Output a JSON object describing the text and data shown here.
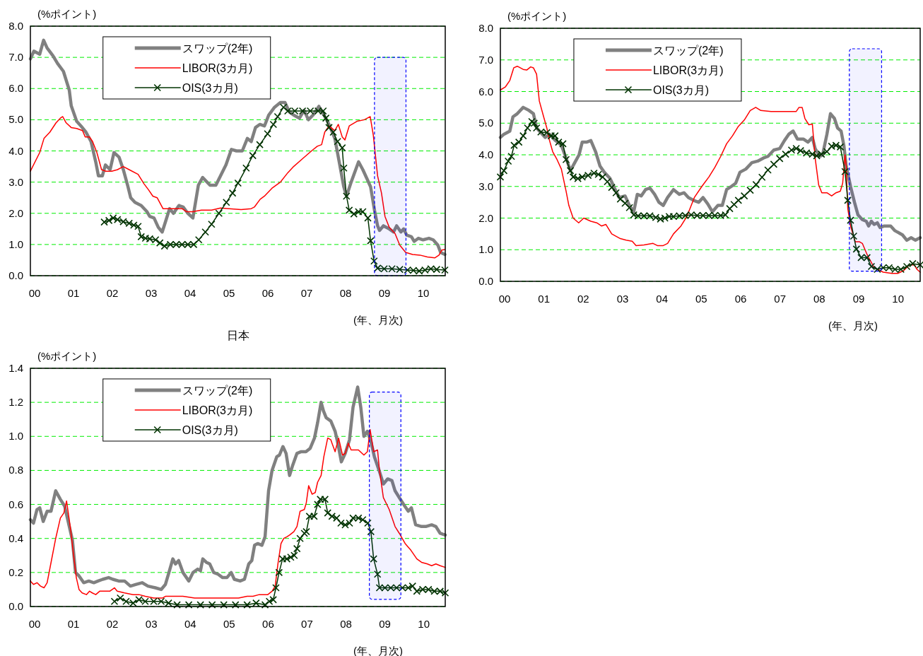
{
  "chart_data": [
    {
      "type": "line",
      "title": "日本",
      "ylabel": "(%ポイント)",
      "xlabel": "(年、月次)",
      "xlim": [
        2000,
        2010.67
      ],
      "ylim": [
        0,
        8
      ],
      "xticks": [
        {
          "value": 2000,
          "label": "00"
        },
        {
          "value": 2001,
          "label": "01"
        },
        {
          "value": 2002,
          "label": "02"
        },
        {
          "value": 2003,
          "label": "03"
        },
        {
          "value": 2004,
          "label": "04"
        },
        {
          "value": 2005,
          "label": "05"
        },
        {
          "value": 2006,
          "label": "06"
        },
        {
          "value": 2007,
          "label": "07"
        },
        {
          "value": 2008,
          "label": "08"
        },
        {
          "value": 2009,
          "label": "09"
        },
        {
          "value": 2010,
          "label": "10"
        }
      ],
      "yticks": [
        {
          "value": 0,
          "label": "0.0"
        },
        {
          "value": 1,
          "label": "1.0"
        },
        {
          "value": 2,
          "label": "2.0"
        },
        {
          "value": 3,
          "label": "3.0"
        },
        {
          "value": 4,
          "label": "4.0"
        },
        {
          "value": 5,
          "label": "5.0"
        },
        {
          "value": 6,
          "label": "6.0"
        },
        {
          "value": 7,
          "label": "7.0"
        },
        {
          "value": 8,
          "label": "8.0"
        }
      ],
      "grid": "y",
      "legend": "top left",
      "line_style": "solid",
      "bands": [
        {
          "axis": "x",
          "from": 2008.85,
          "to": 2009.66,
          "color": "#0000ff"
        }
      ],
      "series": [
        {
          "name": "スワップ(2年)",
          "color": "#808080",
          "marker": "none",
          "x": [
            2000.0,
            2000.09,
            2000.24,
            2000.34,
            2000.43,
            2000.58,
            2000.7,
            2000.85,
            2001.0,
            2001.05,
            2001.19,
            2001.3,
            2001.43,
            2001.56,
            2001.68,
            2001.75,
            2001.85,
            2001.93,
            2002.05,
            2002.15,
            2002.28,
            2002.39,
            2002.5,
            2002.58,
            2002.69,
            2002.85,
            2003.0,
            2003.07,
            2003.18,
            2003.29,
            2003.39,
            2003.48,
            2003.58,
            2003.68,
            2003.82,
            2003.93,
            2004.05,
            2004.18,
            2004.32,
            2004.43,
            2004.62,
            2004.77,
            2004.89,
            2005.03,
            2005.17,
            2005.3,
            2005.45,
            2005.58,
            2005.68,
            2005.79,
            2005.9,
            2006.02,
            2006.13,
            2006.28,
            2006.43,
            2006.55,
            2006.66,
            2006.77,
            2006.92,
            2007.04,
            2007.15,
            2007.27,
            2007.42,
            2007.53,
            2007.68,
            2007.83,
            2007.95,
            2008.06,
            2008.13,
            2008.25,
            2008.44,
            2008.55,
            2008.66,
            2008.75,
            2008.85,
            2008.93,
            2008.98,
            2009.08,
            2009.23,
            2009.34,
            2009.42,
            2009.53,
            2009.6,
            2009.68,
            2009.8,
            2009.87,
            2009.98,
            2010.1,
            2010.25,
            2010.36,
            2010.48,
            2010.55,
            2010.66
          ],
          "values": [
            6.95,
            7.2,
            7.1,
            7.55,
            7.3,
            7.05,
            6.8,
            6.55,
            5.95,
            5.45,
            4.95,
            4.8,
            4.6,
            4.3,
            3.65,
            3.2,
            3.2,
            3.55,
            3.4,
            3.95,
            3.8,
            3.4,
            2.9,
            2.5,
            2.35,
            2.25,
            2.05,
            1.9,
            1.85,
            1.55,
            1.4,
            1.75,
            2.15,
            2.0,
            2.25,
            2.2,
            2.0,
            1.85,
            2.9,
            3.15,
            2.9,
            2.9,
            3.2,
            3.55,
            4.05,
            4.0,
            4.0,
            4.4,
            4.3,
            4.75,
            4.85,
            4.8,
            5.15,
            5.4,
            5.55,
            5.55,
            5.25,
            5.15,
            5.05,
            5.3,
            5.0,
            5.15,
            5.43,
            5.2,
            4.85,
            4.4,
            3.6,
            2.85,
            2.55,
            3.0,
            3.65,
            3.4,
            3.1,
            2.85,
            2.1,
            1.6,
            1.45,
            1.6,
            1.5,
            1.4,
            1.6,
            1.4,
            1.5,
            1.3,
            1.25,
            1.1,
            1.2,
            1.15,
            1.2,
            1.15,
            0.98,
            0.75,
            0.68
          ]
        },
        {
          "name": "LIBOR(3カ月)",
          "color": "#ff0000",
          "marker": "none",
          "x": [
            2000.0,
            2000.24,
            2000.35,
            2000.5,
            2000.66,
            2000.77,
            2000.83,
            2000.92,
            2001.05,
            2001.19,
            2001.34,
            2001.41,
            2001.52,
            2001.6,
            2001.71,
            2001.83,
            2001.94,
            2002.09,
            2002.24,
            2002.39,
            2002.54,
            2002.77,
            2002.92,
            2003.04,
            2003.15,
            2003.26,
            2003.41,
            2003.6,
            2003.9,
            2004.02,
            2004.17,
            2004.4,
            2004.66,
            2004.89,
            2005.11,
            2005.42,
            2005.68,
            2005.76,
            2005.91,
            2006.02,
            2006.21,
            2006.43,
            2006.62,
            2006.77,
            2007.0,
            2007.23,
            2007.38,
            2007.49,
            2007.57,
            2007.68,
            2007.83,
            2007.92,
            2008.02,
            2008.09,
            2008.2,
            2008.4,
            2008.59,
            2008.74,
            2008.82,
            2008.93,
            2009.03,
            2009.12,
            2009.23,
            2009.38,
            2009.5,
            2009.65,
            2009.83,
            2010.02,
            2010.21,
            2010.4,
            2010.51,
            2010.58,
            2010.66
          ],
          "values": [
            3.35,
            3.95,
            4.4,
            4.6,
            4.9,
            5.05,
            5.1,
            4.9,
            4.75,
            4.72,
            4.65,
            4.45,
            4.45,
            4.3,
            3.95,
            3.4,
            3.35,
            3.35,
            3.4,
            3.5,
            3.4,
            3.25,
            2.95,
            2.75,
            2.55,
            2.5,
            2.15,
            2.15,
            2.15,
            2.05,
            2.05,
            2.1,
            2.1,
            2.17,
            2.15,
            2.12,
            2.15,
            2.2,
            2.45,
            2.55,
            2.8,
            3.0,
            3.3,
            3.5,
            3.75,
            4.0,
            4.15,
            4.2,
            4.6,
            4.8,
            4.65,
            4.85,
            4.45,
            4.35,
            4.8,
            4.95,
            5.0,
            5.1,
            4.5,
            3.2,
            2.65,
            1.9,
            1.55,
            1.35,
            0.98,
            0.75,
            0.68,
            0.66,
            0.6,
            0.57,
            0.66,
            0.82,
            0.84
          ]
        },
        {
          "name": "OIS(3カ月)",
          "color": "#003300",
          "marker": "cross",
          "x": [
            2001.9,
            2002.02,
            2002.13,
            2002.24,
            2002.39,
            2002.54,
            2002.66,
            2002.77,
            2002.85,
            2002.96,
            2003.07,
            2003.22,
            2003.33,
            2003.45,
            2003.6,
            2003.75,
            2003.9,
            2004.05,
            2004.2,
            2004.33,
            2004.5,
            2004.66,
            2004.85,
            2005.04,
            2005.2,
            2005.34,
            2005.55,
            2005.72,
            2005.9,
            2006.1,
            2006.25,
            2006.36,
            2006.51,
            2006.62,
            2006.8,
            2007.0,
            2007.2,
            2007.4,
            2007.53,
            2007.6,
            2007.68,
            2007.79,
            2007.9,
            2008.02,
            2008.06,
            2008.13,
            2008.2,
            2008.32,
            2008.44,
            2008.55,
            2008.68,
            2008.75,
            2008.84,
            2008.93,
            2009.1,
            2009.3,
            2009.5,
            2009.7,
            2009.85,
            2010.0,
            2010.15,
            2010.3,
            2010.45,
            2010.66
          ],
          "values": [
            1.72,
            1.77,
            1.85,
            1.8,
            1.73,
            1.68,
            1.62,
            1.58,
            1.25,
            1.2,
            1.18,
            1.15,
            1.05,
            0.95,
            1.0,
            1.0,
            1.0,
            1.0,
            1.0,
            1.15,
            1.4,
            1.65,
            2.0,
            2.35,
            2.65,
            2.97,
            3.45,
            3.85,
            4.2,
            4.55,
            4.85,
            5.1,
            5.4,
            5.28,
            5.28,
            5.28,
            5.28,
            5.28,
            5.28,
            5.05,
            4.75,
            4.6,
            4.3,
            4.1,
            3.45,
            2.55,
            2.1,
            1.98,
            2.05,
            2.05,
            1.85,
            1.12,
            0.47,
            0.24,
            0.22,
            0.22,
            0.2,
            0.18,
            0.17,
            0.15,
            0.18,
            0.22,
            0.2,
            0.18
          ]
        }
      ]
    },
    {
      "type": "line",
      "ylabel": "(%ポイント)",
      "xlabel": "(年、月次)",
      "xlim": [
        2000,
        2010.67
      ],
      "ylim": [
        0,
        8
      ],
      "xticks": [
        {
          "value": 2000,
          "label": "00"
        },
        {
          "value": 2001,
          "label": "01"
        },
        {
          "value": 2002,
          "label": "02"
        },
        {
          "value": 2003,
          "label": "03"
        },
        {
          "value": 2004,
          "label": "04"
        },
        {
          "value": 2005,
          "label": "05"
        },
        {
          "value": 2006,
          "label": "06"
        },
        {
          "value": 2007,
          "label": "07"
        },
        {
          "value": 2008,
          "label": "08"
        },
        {
          "value": 2009,
          "label": "09"
        },
        {
          "value": 2010,
          "label": "10"
        }
      ],
      "yticks": [
        {
          "value": 0,
          "label": "0.0"
        },
        {
          "value": 1,
          "label": "1.0"
        },
        {
          "value": 2,
          "label": "2.0"
        },
        {
          "value": 3,
          "label": "3.0"
        },
        {
          "value": 4,
          "label": "4.0"
        },
        {
          "value": 5,
          "label": "5.0"
        },
        {
          "value": 6,
          "label": "6.0"
        },
        {
          "value": 7,
          "label": "7.0"
        },
        {
          "value": 8,
          "label": "8.0"
        }
      ],
      "grid": "y",
      "legend": "top left",
      "line_style": "solid",
      "bands": [
        {
          "axis": "x",
          "from": 2008.87,
          "to": 2009.69,
          "color": "#0000ff"
        }
      ],
      "series": [
        {
          "name": "スワップ(2年)",
          "color": "#808080",
          "marker": "none",
          "x": [
            2000.0,
            2000.09,
            2000.24,
            2000.32,
            2000.43,
            2000.58,
            2000.73,
            2000.84,
            2000.92,
            2001.03,
            2001.14,
            2001.25,
            2001.4,
            2001.55,
            2001.67,
            2001.78,
            2001.89,
            2002.0,
            2002.08,
            2002.19,
            2002.3,
            2002.42,
            2002.53,
            2002.64,
            2002.79,
            2002.9,
            2003.02,
            2003.17,
            2003.28,
            2003.39,
            2003.48,
            2003.58,
            2003.69,
            2003.8,
            2003.92,
            2004.03,
            2004.14,
            2004.25,
            2004.4,
            2004.55,
            2004.67,
            2004.78,
            2004.93,
            2005.04,
            2005.15,
            2005.27,
            2005.39,
            2005.53,
            2005.64,
            2005.75,
            2005.87,
            2005.98,
            2006.09,
            2006.24,
            2006.39,
            2006.54,
            2006.69,
            2006.8,
            2006.95,
            2007.1,
            2007.22,
            2007.33,
            2007.44,
            2007.55,
            2007.7,
            2007.82,
            2007.93,
            2008.0,
            2008.12,
            2008.19,
            2008.3,
            2008.39,
            2008.49,
            2008.57,
            2008.66,
            2008.73,
            2008.79,
            2008.9,
            2009.0,
            2009.09,
            2009.2,
            2009.3,
            2009.36,
            2009.43,
            2009.5,
            2009.58,
            2009.65,
            2009.76,
            2009.92,
            2010.03,
            2010.22,
            2010.33,
            2010.44,
            2010.55,
            2010.67
          ],
          "values": [
            4.55,
            4.65,
            4.75,
            5.2,
            5.3,
            5.5,
            5.4,
            5.3,
            4.85,
            4.7,
            4.55,
            4.65,
            4.45,
            4.3,
            3.9,
            3.5,
            3.75,
            4.0,
            4.4,
            4.4,
            4.45,
            4.1,
            3.65,
            3.45,
            3.25,
            2.95,
            2.65,
            2.7,
            2.4,
            2.2,
            2.75,
            2.7,
            2.9,
            2.95,
            2.75,
            2.5,
            2.4,
            2.65,
            2.9,
            2.75,
            2.8,
            2.65,
            2.55,
            2.5,
            2.65,
            2.45,
            2.2,
            2.4,
            2.4,
            2.9,
            3.0,
            3.1,
            3.45,
            3.55,
            3.75,
            3.8,
            3.9,
            3.95,
            4.15,
            4.2,
            4.45,
            4.65,
            4.75,
            4.5,
            4.5,
            4.4,
            4.55,
            4.2,
            3.95,
            4.0,
            4.65,
            5.3,
            5.15,
            4.85,
            4.75,
            4.3,
            3.65,
            3.0,
            2.5,
            2.1,
            1.95,
            1.9,
            1.75,
            1.9,
            1.8,
            1.85,
            1.7,
            1.75,
            1.75,
            1.6,
            1.47,
            1.3,
            1.38,
            1.3,
            1.38
          ]
        },
        {
          "name": "LIBOR(3カ月)",
          "color": "#ff0000",
          "marker": "none",
          "x": [
            2000.0,
            2000.13,
            2000.24,
            2000.34,
            2000.43,
            2000.58,
            2000.67,
            2000.77,
            2000.84,
            2000.92,
            2000.99,
            2001.1,
            2001.18,
            2001.25,
            2001.33,
            2001.44,
            2001.55,
            2001.67,
            2001.74,
            2001.85,
            2001.99,
            2002.12,
            2002.3,
            2002.45,
            2002.57,
            2002.68,
            2002.83,
            2003.05,
            2003.2,
            2003.35,
            2003.45,
            2003.65,
            2003.88,
            2003.99,
            2004.14,
            2004.25,
            2004.4,
            2004.59,
            2004.74,
            2004.93,
            2005.12,
            2005.3,
            2005.45,
            2005.6,
            2005.75,
            2005.9,
            2006.05,
            2006.2,
            2006.35,
            2006.49,
            2006.62,
            2006.88,
            2007.14,
            2007.33,
            2007.52,
            2007.59,
            2007.67,
            2007.74,
            2007.84,
            2007.93,
            2008.0,
            2008.09,
            2008.17,
            2008.3,
            2008.42,
            2008.53,
            2008.64,
            2008.7,
            2008.76,
            2008.79,
            2008.83,
            2008.9,
            2009.02,
            2009.13,
            2009.2,
            2009.32,
            2009.5,
            2009.73,
            2009.95,
            2010.1,
            2010.25,
            2010.4,
            2010.52,
            2010.59,
            2010.67
          ],
          "values": [
            6.05,
            6.15,
            6.35,
            6.75,
            6.8,
            6.7,
            6.68,
            6.78,
            6.75,
            6.55,
            5.7,
            5.2,
            4.85,
            4.45,
            4.1,
            3.85,
            3.55,
            2.85,
            2.4,
            2.0,
            1.85,
            2.0,
            1.9,
            1.85,
            1.75,
            1.8,
            1.5,
            1.35,
            1.3,
            1.27,
            1.13,
            1.15,
            1.2,
            1.13,
            1.13,
            1.2,
            1.5,
            1.75,
            2.05,
            2.65,
            3.0,
            3.3,
            3.6,
            3.95,
            4.35,
            4.6,
            4.9,
            5.1,
            5.4,
            5.5,
            5.4,
            5.37,
            5.37,
            5.37,
            5.37,
            5.5,
            5.5,
            5.15,
            4.95,
            4.97,
            3.9,
            3.05,
            2.8,
            2.8,
            2.7,
            2.8,
            2.85,
            3.1,
            4.0,
            3.65,
            2.3,
            1.75,
            1.25,
            1.25,
            1.2,
            0.85,
            0.43,
            0.29,
            0.25,
            0.25,
            0.34,
            0.52,
            0.52,
            0.38,
            0.29
          ]
        },
        {
          "name": "OIS(3カ月)",
          "color": "#003300",
          "marker": "cross",
          "x": [
            2000.0,
            2000.09,
            2000.2,
            2000.28,
            2000.35,
            2000.47,
            2000.58,
            2000.69,
            2000.8,
            2000.86,
            2000.92,
            2001.03,
            2001.18,
            2001.29,
            2001.39,
            2001.48,
            2001.59,
            2001.67,
            2001.78,
            2001.85,
            2001.97,
            2002.08,
            2002.23,
            2002.38,
            2002.49,
            2002.6,
            2002.72,
            2002.83,
            2002.94,
            2003.05,
            2003.17,
            2003.28,
            2003.39,
            2003.5,
            2003.65,
            2003.8,
            2003.95,
            2004.07,
            2004.18,
            2004.29,
            2004.4,
            2004.55,
            2004.7,
            2004.85,
            2005.0,
            2005.15,
            2005.3,
            2005.45,
            2005.6,
            2005.72,
            2005.83,
            2005.94,
            2006.05,
            2006.2,
            2006.35,
            2006.5,
            2006.65,
            2006.8,
            2006.95,
            2007.1,
            2007.25,
            2007.4,
            2007.52,
            2007.63,
            2007.78,
            2007.93,
            2008.04,
            2008.16,
            2008.3,
            2008.42,
            2008.53,
            2008.64,
            2008.76,
            2008.83,
            2008.9,
            2008.98,
            2009.05,
            2009.17,
            2009.32,
            2009.43,
            2009.58,
            2009.73,
            2009.88,
            2010.03,
            2010.18,
            2010.33,
            2010.48,
            2010.67
          ],
          "values": [
            3.3,
            3.5,
            3.8,
            3.95,
            4.3,
            4.4,
            4.6,
            4.85,
            5.05,
            5.0,
            4.85,
            4.72,
            4.7,
            4.6,
            4.6,
            4.4,
            4.35,
            3.85,
            3.5,
            3.3,
            3.25,
            3.3,
            3.35,
            3.42,
            3.38,
            3.3,
            3.15,
            2.97,
            2.8,
            2.6,
            2.47,
            2.33,
            2.1,
            2.07,
            2.07,
            2.07,
            2.02,
            1.97,
            2.0,
            2.05,
            2.05,
            2.07,
            2.08,
            2.1,
            2.08,
            2.08,
            2.08,
            2.08,
            2.08,
            2.1,
            2.3,
            2.43,
            2.56,
            2.7,
            2.88,
            3.06,
            3.29,
            3.52,
            3.7,
            3.88,
            4.02,
            4.15,
            4.2,
            4.13,
            4.06,
            4.02,
            3.97,
            4.02,
            4.1,
            4.27,
            4.3,
            4.25,
            3.47,
            2.56,
            1.93,
            1.43,
            1.02,
            0.75,
            0.75,
            0.47,
            0.38,
            0.43,
            0.43,
            0.38,
            0.38,
            0.47,
            0.56,
            0.52
          ]
        }
      ]
    },
    {
      "type": "line",
      "ylabel": "(%ポイント)",
      "xlabel": "(年、月次)",
      "xlim": [
        2000,
        2010.66
      ],
      "ylim": [
        0,
        1.4
      ],
      "xticks": [
        {
          "value": 2000,
          "label": "00"
        },
        {
          "value": 2001,
          "label": "01"
        },
        {
          "value": 2002,
          "label": "02"
        },
        {
          "value": 2003,
          "label": "03"
        },
        {
          "value": 2004,
          "label": "04"
        },
        {
          "value": 2005,
          "label": "05"
        },
        {
          "value": 2006,
          "label": "06"
        },
        {
          "value": 2007,
          "label": "07"
        },
        {
          "value": 2008,
          "label": "08"
        },
        {
          "value": 2009,
          "label": "09"
        },
        {
          "value": 2010,
          "label": "10"
        }
      ],
      "yticks": [
        {
          "value": 0,
          "label": "0.0"
        },
        {
          "value": 0.2,
          "label": "0.2"
        },
        {
          "value": 0.4,
          "label": "0.4"
        },
        {
          "value": 0.6,
          "label": "0.6"
        },
        {
          "value": 0.8,
          "label": "0.8"
        },
        {
          "value": 1.0,
          "label": "1.0"
        },
        {
          "value": 1.2,
          "label": "1.2"
        },
        {
          "value": 1.4,
          "label": "1.4"
        }
      ],
      "grid": "y",
      "legend": "top left",
      "line_style": "solid",
      "bands": [
        {
          "axis": "x",
          "from": 2008.71,
          "to": 2009.52,
          "color": "#0000ff"
        }
      ],
      "series": [
        {
          "name": "スワップ(2年)",
          "color": "#808080",
          "marker": "none",
          "x": [
            2000.0,
            2000.08,
            2000.17,
            2000.24,
            2000.33,
            2000.43,
            2000.53,
            2000.65,
            2000.77,
            2000.88,
            2000.98,
            2001.08,
            2001.16,
            2001.25,
            2001.37,
            2001.5,
            2001.63,
            2001.74,
            2001.86,
            2002.01,
            2002.12,
            2002.27,
            2002.42,
            2002.57,
            2002.72,
            2002.87,
            2003.02,
            2003.21,
            2003.36,
            2003.47,
            2003.56,
            2003.66,
            2003.73,
            2003.81,
            2003.92,
            2004.07,
            2004.18,
            2004.3,
            2004.37,
            2004.43,
            2004.52,
            2004.61,
            2004.71,
            2004.82,
            2004.94,
            2005.05,
            2005.16,
            2005.24,
            2005.39,
            2005.5,
            2005.61,
            2005.69,
            2005.76,
            2005.84,
            2005.95,
            2006.03,
            2006.12,
            2006.21,
            2006.33,
            2006.4,
            2006.49,
            2006.57,
            2006.66,
            2006.74,
            2006.85,
            2006.96,
            2007.08,
            2007.19,
            2007.3,
            2007.38,
            2007.47,
            2007.53,
            2007.6,
            2007.72,
            2007.83,
            2007.9,
            2007.99,
            2008.09,
            2008.2,
            2008.29,
            2008.41,
            2008.49,
            2008.57,
            2008.66,
            2008.75,
            2008.84,
            2008.96,
            2009.07,
            2009.18,
            2009.29,
            2009.37,
            2009.48,
            2009.59,
            2009.71,
            2009.79,
            2009.9,
            2010.05,
            2010.16,
            2010.31,
            2010.42,
            2010.53,
            2010.66
          ],
          "values": [
            0.51,
            0.49,
            0.57,
            0.58,
            0.5,
            0.56,
            0.56,
            0.68,
            0.63,
            0.59,
            0.49,
            0.39,
            0.2,
            0.18,
            0.14,
            0.15,
            0.14,
            0.15,
            0.16,
            0.17,
            0.16,
            0.15,
            0.15,
            0.12,
            0.13,
            0.14,
            0.12,
            0.11,
            0.1,
            0.13,
            0.2,
            0.28,
            0.25,
            0.27,
            0.2,
            0.15,
            0.2,
            0.22,
            0.21,
            0.28,
            0.26,
            0.25,
            0.2,
            0.19,
            0.17,
            0.17,
            0.2,
            0.16,
            0.15,
            0.16,
            0.25,
            0.27,
            0.36,
            0.37,
            0.36,
            0.41,
            0.68,
            0.8,
            0.88,
            0.89,
            0.94,
            0.9,
            0.77,
            0.83,
            0.9,
            0.91,
            0.91,
            0.93,
            0.99,
            1.08,
            1.2,
            1.15,
            1.11,
            1.09,
            1.03,
            0.96,
            0.85,
            0.9,
            0.98,
            1.17,
            1.29,
            1.17,
            1.0,
            1.03,
            0.97,
            0.88,
            0.8,
            0.72,
            0.75,
            0.74,
            0.68,
            0.64,
            0.6,
            0.56,
            0.58,
            0.48,
            0.47,
            0.47,
            0.48,
            0.47,
            0.43,
            0.42
          ]
        },
        {
          "name": "LIBOR(3カ月)",
          "color": "#ff0000",
          "marker": "none",
          "x": [
            2000.0,
            2000.08,
            2000.17,
            2000.26,
            2000.35,
            2000.43,
            2000.54,
            2000.65,
            2000.77,
            2000.86,
            2000.93,
            2001.03,
            2001.1,
            2001.18,
            2001.25,
            2001.33,
            2001.44,
            2001.52,
            2001.59,
            2001.68,
            2001.78,
            2001.89,
            2002.04,
            2002.16,
            2002.23,
            2002.42,
            2002.64,
            2002.79,
            2002.95,
            2003.17,
            2003.4,
            2003.47,
            2003.7,
            2003.92,
            2004.22,
            2004.52,
            2004.82,
            2005.12,
            2005.35,
            2005.57,
            2005.72,
            2005.88,
            2006.1,
            2006.21,
            2006.29,
            2006.36,
            2006.44,
            2006.51,
            2006.59,
            2006.66,
            2006.77,
            2006.85,
            2006.93,
            2007.04,
            2007.09,
            2007.15,
            2007.24,
            2007.32,
            2007.38,
            2007.47,
            2007.54,
            2007.64,
            2007.72,
            2007.75,
            2007.83,
            2007.92,
            2008.02,
            2008.09,
            2008.17,
            2008.24,
            2008.43,
            2008.57,
            2008.66,
            2008.73,
            2008.82,
            2008.92,
            2008.97,
            2009.07,
            2009.22,
            2009.37,
            2009.48,
            2009.63,
            2009.78,
            2009.93,
            2010.05,
            2010.2,
            2010.31,
            2010.42,
            2010.53,
            2010.66
          ],
          "values": [
            0.15,
            0.13,
            0.14,
            0.12,
            0.11,
            0.14,
            0.27,
            0.4,
            0.52,
            0.55,
            0.62,
            0.46,
            0.32,
            0.17,
            0.1,
            0.08,
            0.07,
            0.09,
            0.08,
            0.07,
            0.09,
            0.09,
            0.09,
            0.11,
            0.09,
            0.08,
            0.07,
            0.07,
            0.06,
            0.05,
            0.05,
            0.06,
            0.06,
            0.06,
            0.05,
            0.05,
            0.05,
            0.05,
            0.05,
            0.06,
            0.06,
            0.07,
            0.07,
            0.09,
            0.12,
            0.25,
            0.37,
            0.4,
            0.41,
            0.42,
            0.44,
            0.47,
            0.56,
            0.57,
            0.61,
            0.71,
            0.66,
            0.67,
            0.73,
            0.77,
            0.88,
            0.99,
            0.98,
            0.96,
            0.91,
            0.99,
            0.89,
            0.9,
            0.96,
            0.92,
            0.92,
            0.89,
            0.91,
            1.04,
            0.91,
            0.92,
            0.8,
            0.64,
            0.57,
            0.47,
            0.43,
            0.37,
            0.33,
            0.28,
            0.26,
            0.25,
            0.24,
            0.25,
            0.24,
            0.23
          ]
        },
        {
          "name": "OIS(3カ月)",
          "color": "#003300",
          "marker": "cross",
          "x": [
            2002.16,
            2002.31,
            2002.46,
            2002.64,
            2002.79,
            2002.95,
            2003.17,
            2003.36,
            2003.55,
            2003.77,
            2004.07,
            2004.37,
            2004.67,
            2004.97,
            2005.27,
            2005.57,
            2005.8,
            2006.03,
            2006.14,
            2006.24,
            2006.31,
            2006.39,
            2006.48,
            2006.59,
            2006.69,
            2006.78,
            2006.85,
            2006.93,
            2007.04,
            2007.09,
            2007.17,
            2007.29,
            2007.38,
            2007.45,
            2007.57,
            2007.64,
            2007.75,
            2007.87,
            2007.98,
            2008.09,
            2008.2,
            2008.29,
            2008.43,
            2008.54,
            2008.67,
            2008.75,
            2008.82,
            2008.92,
            2008.97,
            2009.11,
            2009.26,
            2009.41,
            2009.56,
            2009.71,
            2009.82,
            2009.93,
            2010.08,
            2010.23,
            2010.38,
            2010.53,
            2010.66
          ],
          "values": [
            0.03,
            0.05,
            0.03,
            0.02,
            0.04,
            0.03,
            0.03,
            0.03,
            0.02,
            0.01,
            0.01,
            0.01,
            0.01,
            0.01,
            0.01,
            0.01,
            0.02,
            0.01,
            0.03,
            0.04,
            0.11,
            0.2,
            0.28,
            0.28,
            0.29,
            0.3,
            0.34,
            0.4,
            0.43,
            0.44,
            0.53,
            0.53,
            0.6,
            0.63,
            0.63,
            0.55,
            0.53,
            0.52,
            0.49,
            0.48,
            0.49,
            0.52,
            0.52,
            0.51,
            0.49,
            0.44,
            0.28,
            0.19,
            0.11,
            0.11,
            0.11,
            0.11,
            0.11,
            0.11,
            0.12,
            0.09,
            0.1,
            0.1,
            0.09,
            0.09,
            0.08
          ]
        }
      ]
    }
  ]
}
